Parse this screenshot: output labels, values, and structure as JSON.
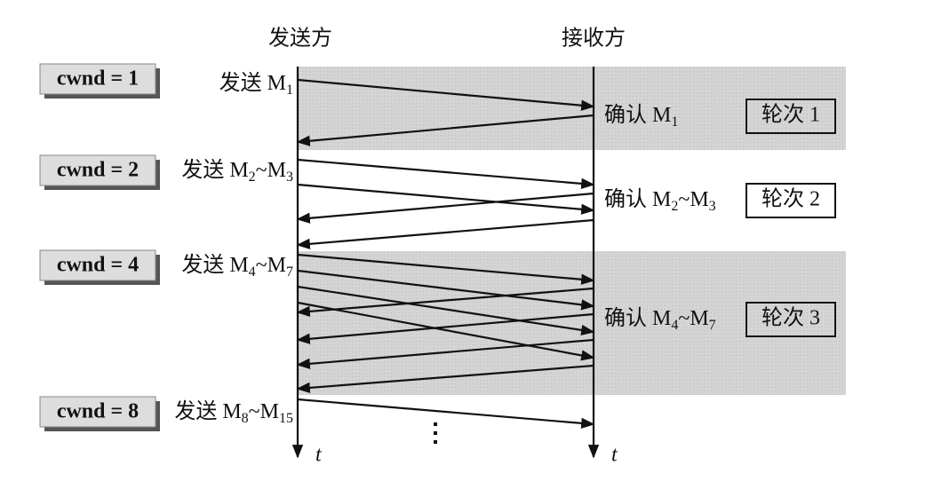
{
  "header": {
    "sender": "发送方",
    "receiver": "接收方"
  },
  "rounds": [
    {
      "cwnd": "cwnd = 1",
      "send": [
        "发送 M",
        "1"
      ],
      "ack": [
        "确认 M",
        "1"
      ],
      "label": "轮次 1"
    },
    {
      "cwnd": "cwnd = 2",
      "send": [
        "发送 M",
        "2",
        "~M",
        "3"
      ],
      "ack": [
        "确认 M",
        "2",
        "~M",
        "3"
      ],
      "label": "轮次 2"
    },
    {
      "cwnd": "cwnd = 4",
      "send": [
        "发送 M",
        "4",
        "~M",
        "7"
      ],
      "ack": [
        "确认 M",
        "4",
        "~M",
        "7"
      ],
      "label": "轮次 3"
    },
    {
      "cwnd": "cwnd = 8",
      "send": [
        "发送 M",
        "8",
        "~M",
        "15"
      ]
    }
  ],
  "time_labels": [
    "t",
    "t"
  ]
}
